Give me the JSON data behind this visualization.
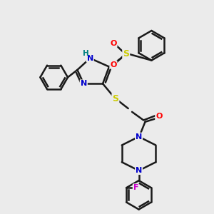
{
  "bg_color": "#ebebeb",
  "bond_color": "#1a1a1a",
  "bond_width": 1.8,
  "atom_colors": {
    "N": "#0000cc",
    "O": "#ff0000",
    "S": "#cccc00",
    "F": "#cc00cc",
    "H": "#008080"
  },
  "figsize": [
    3.0,
    3.0
  ],
  "dpi": 100,
  "xlim": [
    0,
    10
  ],
  "ylim": [
    0,
    10
  ]
}
